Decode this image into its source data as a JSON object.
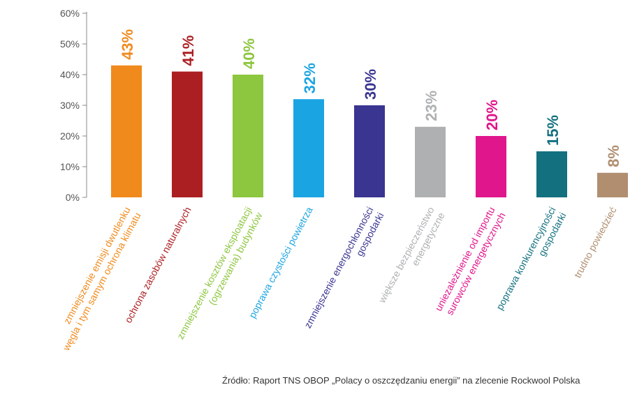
{
  "chart_data": {
    "type": "bar",
    "ylim": [
      0,
      60
    ],
    "yticks": [
      "0%",
      "10%",
      "20%",
      "30%",
      "40%",
      "50%",
      "60%"
    ],
    "grid": false,
    "categories": [
      [
        "zmniejszenie emisji dwutlenku",
        "węgla i tym samym ochrona klimatu"
      ],
      [
        "ochrona zasobów naturalnych"
      ],
      [
        "zmniejszenie kosztów eksploatacji",
        "(ogrzewania) budynków"
      ],
      [
        "poprawa czystości powietrza"
      ],
      [
        "zmniejszenie energochłonności",
        "gospodarki"
      ],
      [
        "większe bezpieczeństwo",
        "energetyczne"
      ],
      [
        "uniezależnienie od importu",
        "surowców energetycznych"
      ],
      [
        "poprawa konkurencyjności",
        "gospodarki"
      ],
      [
        "trudno powiedzieć"
      ]
    ],
    "values": [
      43,
      41,
      40,
      32,
      30,
      23,
      20,
      15,
      8
    ],
    "data_labels": [
      "43%",
      "41%",
      "40%",
      "32%",
      "30%",
      "23%",
      "20%",
      "15%",
      "8%"
    ],
    "colors": [
      "#f08a1c",
      "#ab1e22",
      "#8dc63f",
      "#1ba4e2",
      "#3a3590",
      "#aeb0b2",
      "#e0168c",
      "#12707f",
      "#b08e6f"
    ]
  },
  "source": "Źródło: Raport TNS OBOP „Polacy o oszczędzaniu energii” na zlecenie Rockwool Polska"
}
